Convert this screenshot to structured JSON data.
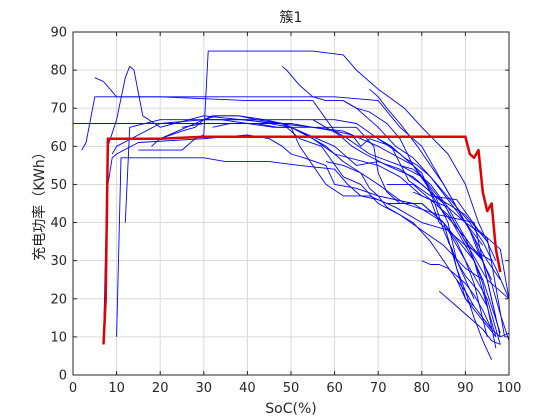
{
  "chart_data": {
    "type": "line",
    "title": "簇1",
    "xlabel": "SoC(%)",
    "ylabel": "充电功率（KWh）",
    "xlim": [
      0,
      100
    ],
    "ylim": [
      0,
      90
    ],
    "xticks": [
      0,
      10,
      20,
      30,
      40,
      50,
      60,
      70,
      80,
      90,
      100
    ],
    "yticks": [
      0,
      10,
      20,
      30,
      40,
      50,
      60,
      70,
      80,
      90
    ],
    "grid": true,
    "colors": {
      "series": "#0000ff",
      "highlight": "#e00000",
      "grid": "#d9d9d9",
      "axes": "#262626"
    },
    "series": [
      {
        "highlight": false,
        "x": [
          0,
          10,
          30,
          50,
          55,
          62,
          70,
          78,
          85,
          90,
          95,
          100
        ],
        "y": [
          66,
          66,
          66,
          66,
          65,
          64,
          60,
          55,
          45,
          35,
          25,
          20
        ]
      },
      {
        "highlight": false,
        "x": [
          2,
          3,
          5,
          10,
          20,
          40,
          55,
          60,
          64,
          66,
          68,
          73,
          77,
          82,
          88,
          93,
          98,
          100
        ],
        "y": [
          59,
          61,
          73,
          73,
          73,
          72,
          72,
          64,
          63,
          60,
          62,
          60,
          51,
          47,
          46,
          38,
          33,
          20
        ]
      },
      {
        "highlight": false,
        "x": [
          5,
          7,
          10,
          12,
          20,
          40,
          60,
          70,
          75,
          80,
          85,
          90,
          95,
          98
        ],
        "y": [
          78,
          77,
          73,
          73,
          73,
          73,
          73,
          72,
          65,
          60,
          50,
          40,
          30,
          25
        ]
      },
      {
        "highlight": false,
        "x": [
          7,
          8,
          10,
          12,
          13,
          14,
          16,
          20,
          30,
          47,
          55,
          65,
          69,
          70,
          72,
          75,
          80,
          85,
          88,
          90,
          95,
          98
        ],
        "y": [
          9,
          60,
          67,
          78,
          81,
          80,
          68,
          65,
          68,
          66,
          65,
          65,
          60,
          53,
          48,
          45,
          45,
          40,
          35,
          30,
          20,
          8
        ]
      },
      {
        "highlight": false,
        "x": [
          8,
          9,
          10,
          15,
          30,
          40,
          45,
          48,
          50,
          53,
          58,
          60,
          65,
          70,
          78,
          85,
          92,
          97
        ],
        "y": [
          50,
          57,
          58,
          61,
          62,
          63,
          62,
          60,
          58,
          57,
          55,
          50,
          49,
          47,
          45,
          40,
          30,
          10
        ]
      },
      {
        "highlight": false,
        "x": [
          9,
          10,
          20,
          30,
          40,
          50,
          60,
          65,
          70,
          75,
          80,
          85,
          90,
          94
        ],
        "y": [
          58,
          60,
          66,
          67,
          67,
          65,
          60,
          55,
          56,
          54,
          50,
          45,
          35,
          30
        ]
      },
      {
        "highlight": false,
        "x": [
          10,
          11,
          15,
          20,
          25,
          30,
          35,
          45,
          52,
          60,
          63,
          66,
          70,
          74,
          80,
          86,
          90,
          96
        ],
        "y": [
          10,
          57,
          57,
          57,
          57,
          57,
          56,
          56,
          55,
          54,
          50,
          47,
          46,
          44,
          40,
          38,
          34,
          30
        ]
      },
      {
        "highlight": false,
        "x": [
          12,
          13,
          20,
          30,
          45,
          55,
          58,
          61,
          64,
          67,
          72,
          78,
          83,
          90,
          95
        ],
        "y": [
          40,
          65,
          67,
          67,
          67,
          67,
          65,
          63,
          60,
          58,
          55,
          52,
          47,
          42,
          35
        ]
      },
      {
        "highlight": false,
        "x": [
          15,
          25,
          28,
          30,
          31,
          35,
          45,
          55,
          62,
          65,
          70,
          76,
          80,
          86,
          90,
          93,
          97
        ],
        "y": [
          59,
          59,
          62,
          63,
          85,
          85,
          85,
          85,
          84,
          80,
          75,
          70,
          65,
          58,
          50,
          40,
          30
        ]
      },
      {
        "highlight": false,
        "x": [
          18,
          20,
          28,
          32,
          38,
          44,
          48,
          50,
          52,
          55,
          58,
          62,
          68,
          72,
          80,
          85,
          90,
          97
        ],
        "y": [
          60,
          62,
          66,
          68,
          68,
          67,
          66,
          65,
          60,
          55,
          50,
          47,
          47,
          45,
          45,
          40,
          20,
          10
        ]
      },
      {
        "highlight": false,
        "x": [
          20,
          25,
          28,
          30,
          34,
          40,
          46,
          50,
          55,
          60,
          62,
          66,
          70,
          76,
          84,
          92,
          98
        ],
        "y": [
          62,
          64,
          65,
          67,
          67,
          66,
          65,
          65,
          62,
          58,
          56,
          53,
          50,
          45,
          42,
          40,
          10
        ]
      },
      {
        "highlight": false,
        "x": [
          25,
          30,
          40,
          48,
          52,
          57,
          62,
          66,
          70,
          75,
          80,
          85,
          90,
          94
        ],
        "y": [
          65,
          66,
          66,
          66,
          62,
          60,
          52,
          50,
          45,
          42,
          38,
          34,
          28,
          25
        ]
      },
      {
        "highlight": false,
        "x": [
          30,
          33,
          38,
          42,
          48,
          52,
          55,
          58,
          60,
          70,
          75,
          80,
          86,
          90,
          95,
          99
        ],
        "y": [
          67,
          68,
          68,
          67,
          66,
          64,
          62,
          60,
          58,
          55,
          52,
          47,
          44,
          40,
          36,
          10
        ]
      },
      {
        "highlight": false,
        "x": [
          32,
          36,
          42,
          47,
          55,
          60,
          63,
          68,
          75,
          80,
          83,
          86,
          88,
          92
        ],
        "y": [
          65,
          66,
          66,
          65,
          65,
          64,
          62,
          58,
          55,
          52,
          47,
          40,
          30,
          20
        ]
      },
      {
        "highlight": false,
        "x": [
          48,
          49,
          52,
          55,
          58,
          62,
          65,
          70,
          74,
          78,
          82,
          86,
          90,
          94
        ],
        "y": [
          81,
          80,
          76,
          73,
          72,
          72,
          70,
          65,
          60,
          57,
          52,
          46,
          40,
          34
        ]
      },
      {
        "highlight": false,
        "x": [
          55,
          60,
          65,
          70,
          75,
          80,
          83,
          85,
          88,
          90,
          93,
          95
        ],
        "y": [
          67,
          67,
          66,
          62,
          58,
          53,
          45,
          38,
          30,
          26,
          22,
          18
        ]
      },
      {
        "highlight": false,
        "x": [
          58,
          62,
          66,
          68,
          70,
          72,
          75,
          78,
          82,
          85,
          88,
          90,
          92
        ],
        "y": [
          56,
          55,
          53,
          49,
          47,
          44,
          42,
          40,
          35,
          30,
          25,
          20,
          18
        ]
      },
      {
        "highlight": false,
        "x": [
          62,
          65,
          68,
          72,
          75,
          78,
          81,
          84,
          87,
          90,
          94,
          97
        ],
        "y": [
          72,
          70,
          69,
          66,
          62,
          55,
          50,
          44,
          40,
          36,
          30,
          15
        ]
      },
      {
        "highlight": false,
        "x": [
          68,
          70,
          72,
          75,
          77,
          79,
          82,
          85,
          88,
          91,
          93,
          96
        ],
        "y": [
          75,
          73,
          70,
          66,
          63,
          60,
          55,
          50,
          44,
          38,
          32,
          25
        ]
      },
      {
        "highlight": false,
        "x": [
          70,
          73,
          76,
          79,
          82,
          85,
          88,
          91,
          94,
          97,
          100
        ],
        "y": [
          62,
          60,
          57,
          55,
          52,
          48,
          44,
          40,
          35,
          28,
          20
        ]
      },
      {
        "highlight": false,
        "x": [
          72,
          75,
          78,
          80,
          82,
          84,
          86,
          88,
          90,
          92,
          95
        ],
        "y": [
          50,
          50,
          50,
          48,
          46,
          40,
          38,
          34,
          30,
          24,
          10
        ]
      },
      {
        "highlight": false,
        "x": [
          75,
          78,
          80,
          82,
          84,
          86,
          88,
          90,
          92,
          94,
          97
        ],
        "y": [
          55,
          54,
          52,
          50,
          47,
          44,
          40,
          36,
          30,
          24,
          7
        ]
      },
      {
        "highlight": false,
        "x": [
          78,
          80,
          82,
          84,
          86,
          88,
          90,
          92,
          94,
          96,
          98
        ],
        "y": [
          48,
          47,
          46,
          44,
          42,
          38,
          34,
          30,
          25,
          18,
          11
        ]
      },
      {
        "highlight": false,
        "x": [
          80,
          82,
          84,
          86,
          88,
          90,
          92,
          94,
          96
        ],
        "y": [
          30,
          29,
          29,
          28,
          26,
          24,
          21,
          17,
          12
        ]
      },
      {
        "highlight": false,
        "x": [
          84,
          86,
          88,
          90,
          92,
          94,
          96,
          98
        ],
        "y": [
          22,
          20,
          18,
          16,
          14,
          12,
          9,
          8
        ]
      },
      {
        "highlight": false,
        "x": [
          86,
          87,
          88,
          90,
          92,
          94,
          96
        ],
        "y": [
          35,
          33,
          28,
          22,
          15,
          9,
          4
        ]
      },
      {
        "highlight": false,
        "x": [
          88,
          90,
          92,
          94,
          96,
          98,
          100
        ],
        "y": [
          25,
          22,
          18,
          15,
          12,
          10,
          11
        ]
      },
      {
        "highlight": false,
        "x": [
          90,
          92,
          94,
          96,
          98,
          100
        ],
        "y": [
          40,
          36,
          30,
          24,
          16,
          9
        ]
      },
      {
        "highlight": true,
        "x": [
          7,
          7.5,
          8,
          10,
          20,
          30,
          40,
          50,
          60,
          70,
          80,
          85,
          90,
          91,
          92,
          93,
          94,
          95,
          96,
          97,
          98
        ],
        "y": [
          8,
          20,
          62,
          62,
          62,
          62.5,
          62.5,
          62.5,
          62.5,
          62.5,
          62.5,
          62.5,
          62.5,
          58,
          57,
          59,
          48,
          43,
          45,
          33,
          27
        ]
      }
    ]
  }
}
